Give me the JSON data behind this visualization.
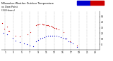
{
  "title": "Milwaukee Weather Outdoor Temp",
  "title_fontsize": 2.8,
  "background_color": "#ffffff",
  "grid_color": "#bbbbbb",
  "xlim": [
    0,
    24
  ],
  "ylim": [
    -10,
    60
  ],
  "tick_fontsize": 2.2,
  "temp_color": "#cc0000",
  "dew_color": "#0000cc",
  "temp_data": [
    [
      0.3,
      38
    ],
    [
      0.7,
      28
    ],
    [
      1.5,
      32
    ],
    [
      1.8,
      25
    ],
    [
      2.0,
      25
    ],
    [
      3.5,
      16
    ],
    [
      4.5,
      14
    ],
    [
      6.5,
      18
    ],
    [
      7.2,
      22
    ],
    [
      8.5,
      35
    ],
    [
      8.8,
      36
    ],
    [
      9.0,
      36
    ],
    [
      9.3,
      37
    ],
    [
      10.0,
      37
    ],
    [
      10.3,
      36
    ],
    [
      10.6,
      36
    ],
    [
      10.9,
      35
    ],
    [
      11.2,
      34
    ],
    [
      11.5,
      34
    ],
    [
      11.8,
      33
    ],
    [
      12.1,
      33
    ],
    [
      12.4,
      32
    ],
    [
      12.7,
      31
    ],
    [
      13.0,
      30
    ],
    [
      13.3,
      29
    ],
    [
      13.6,
      28
    ],
    [
      14.0,
      27
    ],
    [
      15.2,
      22
    ],
    [
      16.0,
      10
    ],
    [
      16.8,
      6
    ],
    [
      18.5,
      -2
    ]
  ],
  "dew_data": [
    [
      0.5,
      20
    ],
    [
      1.5,
      18
    ],
    [
      2.8,
      12
    ],
    [
      3.5,
      7
    ],
    [
      4.5,
      4
    ],
    [
      5.5,
      2
    ],
    [
      6.2,
      0
    ],
    [
      7.0,
      -2
    ],
    [
      7.8,
      -3
    ],
    [
      8.5,
      6
    ],
    [
      9.0,
      8
    ],
    [
      9.5,
      10
    ],
    [
      10.0,
      12
    ],
    [
      10.5,
      13
    ],
    [
      11.0,
      14
    ],
    [
      11.5,
      15
    ],
    [
      12.0,
      16
    ],
    [
      12.5,
      16
    ],
    [
      13.0,
      15
    ],
    [
      13.5,
      15
    ],
    [
      14.0,
      14
    ],
    [
      14.5,
      13
    ],
    [
      15.0,
      12
    ],
    [
      15.5,
      11
    ],
    [
      16.0,
      10
    ],
    [
      16.5,
      6
    ],
    [
      17.0,
      4
    ],
    [
      17.5,
      2
    ],
    [
      18.5,
      -4
    ]
  ],
  "xticks": [
    1,
    3,
    5,
    7,
    9,
    11,
    13,
    15,
    17,
    19,
    21,
    23
  ],
  "xtick_labels": [
    "1",
    "3",
    "5",
    "7",
    "9",
    "11",
    "13",
    "15",
    "17",
    "19",
    "21",
    "23"
  ],
  "yticks": [
    0,
    10,
    20,
    30,
    40,
    50
  ],
  "ytick_labels": [
    "0",
    "10",
    "20",
    "30",
    "40",
    "50"
  ]
}
